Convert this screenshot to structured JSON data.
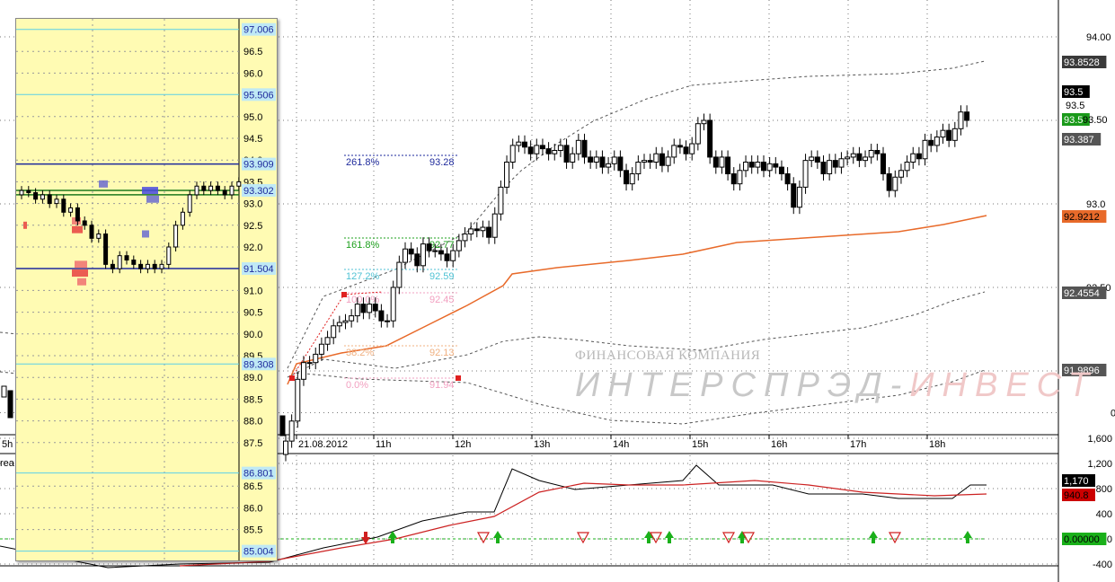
{
  "chart_data": [
    {
      "type": "candlestick",
      "name": "main-price-chart",
      "y_ticks": [
        "94.00",
        "93.0",
        "92.50"
      ],
      "y_ticks_partial": [
        "0"
      ],
      "ylim": [
        91.52,
        94.2
      ],
      "x_ticks": [
        "21.08.2012",
        "11h",
        "12h",
        "13h",
        "14h",
        "15h",
        "16h",
        "17h",
        "18h"
      ],
      "x_left_cutoff_label": "5h",
      "price_tags": [
        {
          "label": "93.8528",
          "value": 93.8528,
          "bg": "#3a3a3a",
          "fg": "#ffffff"
        },
        {
          "label": "93.5",
          "value": 93.5,
          "bg": "#000000",
          "fg": "#ffffff"
        },
        {
          "label": "93.5",
          "value": 93.5,
          "bg": "#1a9a1a",
          "fg": "#ffffff"
        },
        {
          "label": "93.387",
          "value": 93.387,
          "bg": "#555555",
          "fg": "#ffffff"
        },
        {
          "label": "92.9212",
          "value": 92.9212,
          "bg": "#e86a2a",
          "fg": "#000000"
        },
        {
          "label": "92.4554",
          "value": 92.4554,
          "bg": "#555555",
          "fg": "#ffffff"
        },
        {
          "label": "91.9896",
          "value": 91.9896,
          "bg": "#555555",
          "fg": "#ffffff"
        }
      ],
      "last_price_label": "93.5",
      "extra_label": "93.50",
      "fib_levels": [
        {
          "pct": "261.8%",
          "value": "93.28",
          "color": "#1e2a9c"
        },
        {
          "pct": "161.8%",
          "value": "92.77",
          "color": "#1ea01e"
        },
        {
          "pct": "127.2%",
          "value": "92.59",
          "color": "#4fc2d4"
        },
        {
          "pct": "100.0%",
          "value": "92.45",
          "color": "#f2a0c0"
        },
        {
          "pct": "38.2%",
          "value": "92.13",
          "color": "#f0b080"
        },
        {
          "pct": "0.0%",
          "value": "91.94",
          "color": "#f2a0c0"
        }
      ],
      "series": [
        {
          "name": "price",
          "color": "#000000"
        },
        {
          "name": "moving-average",
          "color": "#e86a2a"
        },
        {
          "name": "upper-band",
          "color": "#555555"
        },
        {
          "name": "lower-band",
          "color": "#555555"
        }
      ]
    },
    {
      "type": "line",
      "name": "oscillator",
      "y_ticks": [
        "1,600",
        "1,200",
        "800",
        "400",
        "0",
        "-400"
      ],
      "ylim": [
        -700,
        1750
      ],
      "value_tags": [
        {
          "label": "1,170",
          "value": 1170,
          "bg": "#000000",
          "fg": "#ffffff"
        },
        {
          "label": "940.8",
          "value": 940.8,
          "bg": "#cc0000",
          "fg": "#000000"
        },
        {
          "label": "0.00000",
          "value": 0,
          "bg": "#1ab01a",
          "fg": "#000000"
        }
      ],
      "series": [
        {
          "name": "oscillator-line",
          "color": "#000000"
        },
        {
          "name": "oscillator-signal",
          "color": "#cc2222"
        }
      ],
      "left_label": "rea"
    },
    {
      "type": "candlestick",
      "name": "volume-profile-inset",
      "y_ticks": [
        "96.5",
        "96.0",
        "95.0",
        "94.5",
        "94.0",
        "93.5",
        "93.0",
        "92.5",
        "92.0",
        "91.0",
        "90.5",
        "90.0",
        "89.5",
        "89.0",
        "88.5",
        "88.0",
        "87.5",
        "86.5",
        "86.0",
        "85.5"
      ],
      "ylim": [
        84.9,
        97.1
      ],
      "level_tags": [
        {
          "label": "97.006",
          "value": 97.006,
          "bg": "#bfe9f5"
        },
        {
          "label": "95.506",
          "value": 95.506,
          "bg": "#bfe9f5"
        },
        {
          "label": "93.909",
          "value": 93.909,
          "bg": "#bfe9f5"
        },
        {
          "label": "93.302",
          "value": 93.302,
          "bg": "#bfe9f5"
        },
        {
          "label": "91.504",
          "value": 91.504,
          "bg": "#bfe9f5"
        },
        {
          "label": "89.308",
          "value": 89.308,
          "bg": "#bfe9f5"
        },
        {
          "label": "86.801",
          "value": 86.801,
          "bg": "#bfe9f5"
        },
        {
          "label": "85.004",
          "value": 85.004,
          "bg": "#bfe9f5"
        }
      ]
    }
  ],
  "watermark": {
    "line1": "ФИНАНСОВАЯ КОМПАНИЯ",
    "line2_a": "ИНТЕРСПРЭД-",
    "line2_b": "ИНВЕСТ"
  },
  "colors": {
    "inset_bg": "#fffbb3",
    "fib_green": "#1ea01e",
    "fib_blue": "#1e2a9c",
    "ma_orange": "#e86a2a"
  }
}
